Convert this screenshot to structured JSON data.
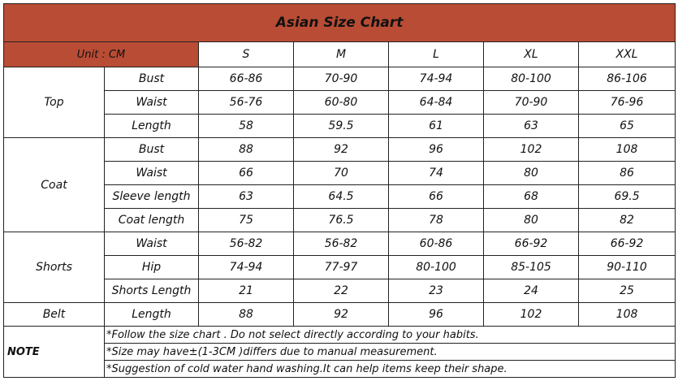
{
  "title": "Asian Size Chart",
  "unit_label": "Unit : CM",
  "sizes": [
    "S",
    "M",
    "L",
    "XL",
    "XXL"
  ],
  "groups": [
    {
      "name": "Top",
      "rows": [
        {
          "measure": "Bust",
          "values": [
            "66-86",
            "70-90",
            "74-94",
            "80-100",
            "86-106"
          ]
        },
        {
          "measure": "Waist",
          "values": [
            "56-76",
            "60-80",
            "64-84",
            "70-90",
            "76-96"
          ]
        },
        {
          "measure": "Length",
          "values": [
            "58",
            "59.5",
            "61",
            "63",
            "65"
          ]
        }
      ]
    },
    {
      "name": "Coat",
      "rows": [
        {
          "measure": "Bust",
          "values": [
            "88",
            "92",
            "96",
            "102",
            "108"
          ]
        },
        {
          "measure": "Waist",
          "values": [
            "66",
            "70",
            "74",
            "80",
            "86"
          ]
        },
        {
          "measure": "Sleeve length",
          "values": [
            "63",
            "64.5",
            "66",
            "68",
            "69.5"
          ]
        },
        {
          "measure": "Coat length",
          "values": [
            "75",
            "76.5",
            "78",
            "80",
            "82"
          ]
        }
      ]
    },
    {
      "name": "Shorts",
      "rows": [
        {
          "measure": "Waist",
          "values": [
            "56-82",
            "56-82",
            "60-86",
            "66-92",
            "66-92"
          ]
        },
        {
          "measure": "Hip",
          "values": [
            "74-94",
            "77-97",
            "80-100",
            "85-105",
            "90-110"
          ]
        },
        {
          "measure": "Shorts Length",
          "values": [
            "21",
            "22",
            "23",
            "24",
            "25"
          ]
        }
      ]
    },
    {
      "name": "Belt",
      "rows": [
        {
          "measure": "Length",
          "values": [
            "88",
            "92",
            "96",
            "102",
            "108"
          ]
        }
      ]
    }
  ],
  "note": {
    "label": "NOTE",
    "lines": [
      "*Follow the size chart . Do not select directly according to your habits.",
      "*Size may have±(1-3CM )differs due to manual measurement.",
      "*Suggestion of cold water hand washing.It can help items keep their shape."
    ]
  },
  "colors": {
    "header_bg": "#b94c35",
    "border": "#222222"
  }
}
